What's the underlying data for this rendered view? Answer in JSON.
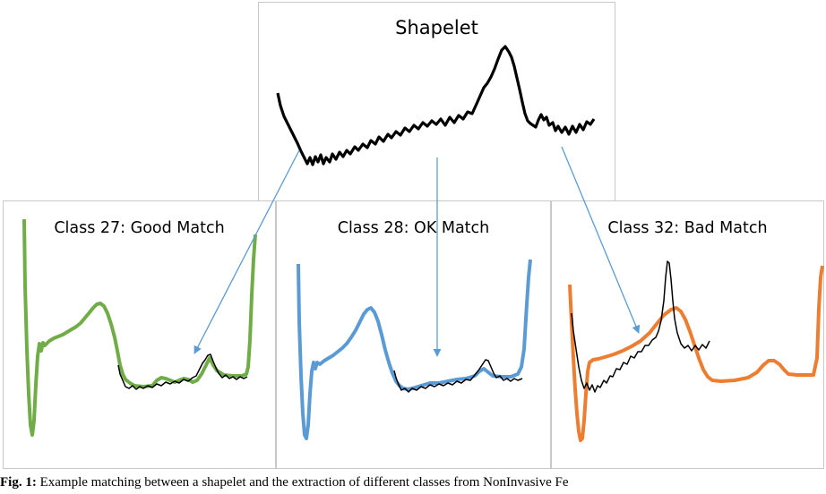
{
  "figure": {
    "shapelet_panel": {
      "title": "Shapelet"
    },
    "classes": [
      {
        "title": "Class 27: Good Match",
        "color": "#70ad47"
      },
      {
        "title": "Class 28: OK Match",
        "color": "#5b9bd5"
      },
      {
        "title": "Class 32: Bad Match",
        "color": "#ed7d31"
      }
    ],
    "shapelet_color": "#000000",
    "arrow_color": "#5b9bd5",
    "caption": {
      "label": "Fig. 1:",
      "text": " Example matching between a shapelet and the extraction of different classes from NonInvasive Fe"
    }
  }
}
